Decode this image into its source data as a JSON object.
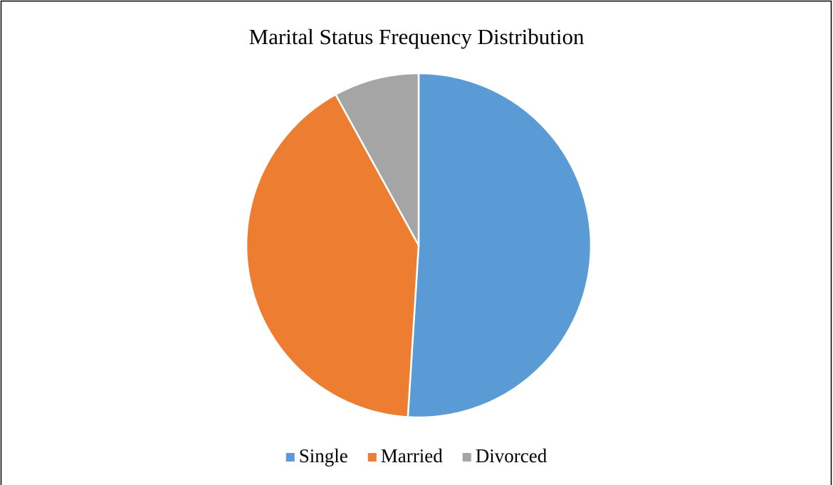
{
  "chart_data": {
    "type": "pie",
    "title": "Marital Status Frequency Distribution",
    "categories": [
      "Single",
      "Married",
      "Divorced"
    ],
    "values": [
      51,
      41,
      8
    ],
    "colors": [
      "#5b9bd5",
      "#ed7d31",
      "#a5a5a5"
    ],
    "legend": "bottom"
  }
}
